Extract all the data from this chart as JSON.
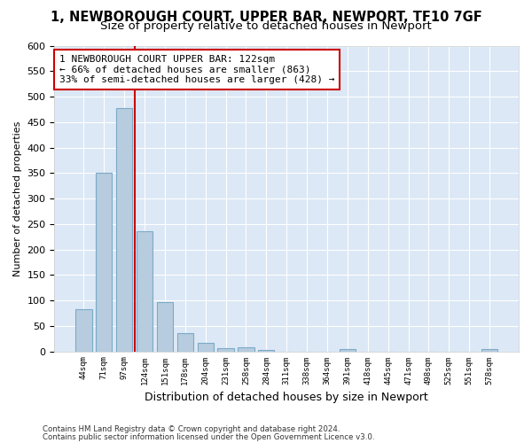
{
  "title1": "1, NEWBOROUGH COURT, UPPER BAR, NEWPORT, TF10 7GF",
  "title2": "Size of property relative to detached houses in Newport",
  "xlabel": "Distribution of detached houses by size in Newport",
  "ylabel": "Number of detached properties",
  "categories": [
    "44sqm",
    "71sqm",
    "97sqm",
    "124sqm",
    "151sqm",
    "178sqm",
    "204sqm",
    "231sqm",
    "258sqm",
    "284sqm",
    "311sqm",
    "338sqm",
    "364sqm",
    "391sqm",
    "418sqm",
    "445sqm",
    "471sqm",
    "498sqm",
    "525sqm",
    "551sqm",
    "578sqm"
  ],
  "values": [
    83,
    350,
    478,
    235,
    96,
    36,
    16,
    7,
    8,
    3,
    0,
    0,
    0,
    5,
    0,
    0,
    0,
    0,
    0,
    0,
    5
  ],
  "bar_color": "#b8ccdf",
  "bar_edge_color": "#7aaac8",
  "vline_color": "#cc0000",
  "annotation_text": "1 NEWBOROUGH COURT UPPER BAR: 122sqm\n← 66% of detached houses are smaller (863)\n33% of semi-detached houses are larger (428) →",
  "annotation_box_color": "white",
  "annotation_box_edge": "#cc0000",
  "ylim": [
    0,
    600
  ],
  "yticks": [
    0,
    50,
    100,
    150,
    200,
    250,
    300,
    350,
    400,
    450,
    500,
    550,
    600
  ],
  "footer1": "Contains HM Land Registry data © Crown copyright and database right 2024.",
  "footer2": "Contains public sector information licensed under the Open Government Licence v3.0.",
  "bg_color": "#dce8f5",
  "title1_fontsize": 10.5,
  "title2_fontsize": 9.5,
  "vline_pos": 2.5
}
